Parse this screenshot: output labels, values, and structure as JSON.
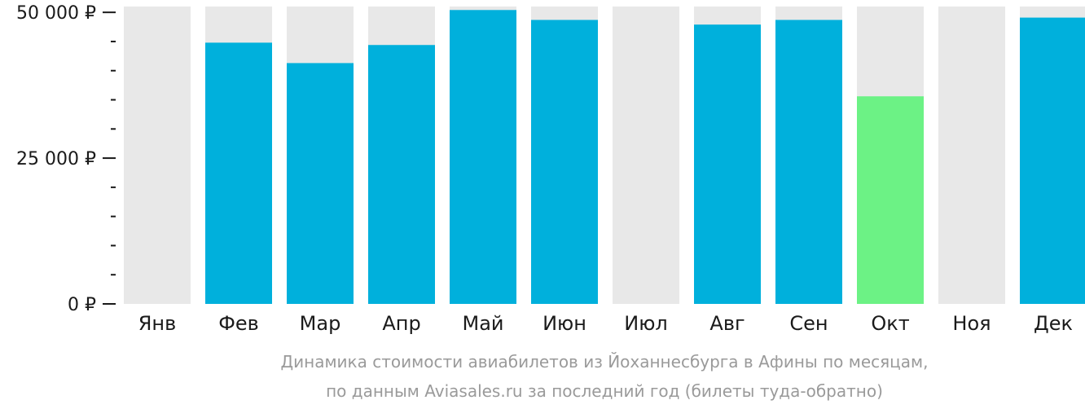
{
  "chart_data": {
    "type": "bar",
    "categories": [
      "Янв",
      "Фев",
      "Мар",
      "Апр",
      "Май",
      "Июн",
      "Июл",
      "Авг",
      "Сен",
      "Окт",
      "Ноя",
      "Дек"
    ],
    "values": [
      null,
      44800,
      41300,
      44400,
      50400,
      48700,
      null,
      47900,
      48700,
      35600,
      null,
      49100
    ],
    "highlight_category": "Окт",
    "ylim": [
      0,
      51000
    ],
    "y_ticks": [
      {
        "value": 0,
        "label": "0 ₽"
      },
      {
        "value": 25000,
        "label": "25 000 ₽"
      },
      {
        "value": 50000,
        "label": "50 000 ₽"
      }
    ],
    "minor_tick_step": 5000,
    "caption_lines": [
      "Динамика стоимости авиабилетов из Йоханнесбурга в Афины по месяцам,",
      "по данным Aviasales.ru за последний год (билеты туда-обратно)"
    ],
    "colors": {
      "bar": "#00b0dc",
      "highlight": "#6cf285",
      "background_bar": "#e8e8e8",
      "axis": "#1a1a1a",
      "caption": "#9a9a9a"
    }
  }
}
